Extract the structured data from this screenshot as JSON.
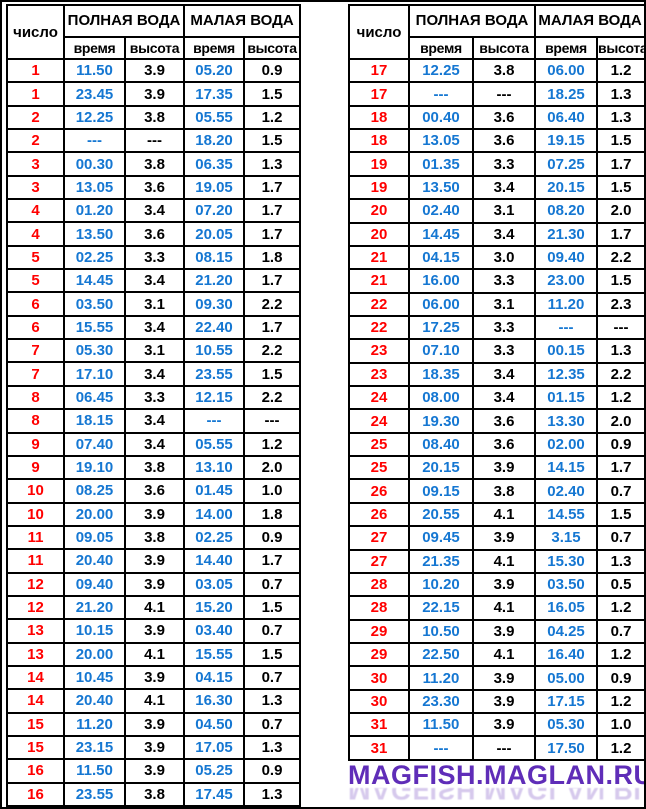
{
  "header": {
    "date_label": "число",
    "high_water_label": "ПОЛНАЯ\nВОДА",
    "low_water_label": "МАЛАЯ\nВОДА",
    "time_label": "время",
    "height_label": "высота"
  },
  "colors": {
    "date": "#ff0000",
    "time": "#1577d2",
    "height": "#000000",
    "border": "#000000",
    "watermark": "#5f2db8"
  },
  "watermark": {
    "text": "MAGFISH.MAGLAN.RU"
  },
  "tables": [
    {
      "rows": [
        [
          "1",
          "11.50",
          "3.9",
          "05.20",
          "0.9"
        ],
        [
          "1",
          "23.45",
          "3.9",
          "17.35",
          "1.5"
        ],
        [
          "2",
          "12.25",
          "3.8",
          "05.55",
          "1.2"
        ],
        [
          "2",
          "---",
          "---",
          "18.20",
          "1.5"
        ],
        [
          "3",
          "00.30",
          "3.8",
          "06.35",
          "1.3"
        ],
        [
          "3",
          "13.05",
          "3.6",
          "19.05",
          "1.7"
        ],
        [
          "4",
          "01.20",
          "3.4",
          "07.20",
          "1.7"
        ],
        [
          "4",
          "13.50",
          "3.6",
          "20.05",
          "1.7"
        ],
        [
          "5",
          "02.25",
          "3.3",
          "08.15",
          "1.8"
        ],
        [
          "5",
          "14.45",
          "3.4",
          "21.20",
          "1.7"
        ],
        [
          "6",
          "03.50",
          "3.1",
          "09.30",
          "2.2"
        ],
        [
          "6",
          "15.55",
          "3.4",
          "22.40",
          "1.7"
        ],
        [
          "7",
          "05.30",
          "3.1",
          "10.55",
          "2.2"
        ],
        [
          "7",
          "17.10",
          "3.4",
          "23.55",
          "1.5"
        ],
        [
          "8",
          "06.45",
          "3.3",
          "12.15",
          "2.2"
        ],
        [
          "8",
          "18.15",
          "3.4",
          "---",
          "---"
        ],
        [
          "9",
          "07.40",
          "3.4",
          "05.55",
          "1.2"
        ],
        [
          "9",
          "19.10",
          "3.8",
          "13.10",
          "2.0"
        ],
        [
          "10",
          "08.25",
          "3.6",
          "01.45",
          "1.0"
        ],
        [
          "10",
          "20.00",
          "3.9",
          "14.00",
          "1.8"
        ],
        [
          "11",
          "09.05",
          "3.8",
          "02.25",
          "0.9"
        ],
        [
          "11",
          "20.40",
          "3.9",
          "14.40",
          "1.7"
        ],
        [
          "12",
          "09.40",
          "3.9",
          "03.05",
          "0.7"
        ],
        [
          "12",
          "21.20",
          "4.1",
          "15.20",
          "1.5"
        ],
        [
          "13",
          "10.15",
          "3.9",
          "03.40",
          "0.7"
        ],
        [
          "13",
          "20.00",
          "4.1",
          "15.55",
          "1.5"
        ],
        [
          "14",
          "10.45",
          "3.9",
          "04.15",
          "0.7"
        ],
        [
          "14",
          "20.40",
          "4.1",
          "16.30",
          "1.3"
        ],
        [
          "15",
          "11.20",
          "3.9",
          "04.50",
          "0.7"
        ],
        [
          "15",
          "23.15",
          "3.9",
          "17.05",
          "1.3"
        ],
        [
          "16",
          "11.50",
          "3.9",
          "05.25",
          "0.9"
        ],
        [
          "16",
          "23.55",
          "3.8",
          "17.45",
          "1.3"
        ]
      ]
    },
    {
      "rows": [
        [
          "17",
          "12.25",
          "3.8",
          "06.00",
          "1.2"
        ],
        [
          "17",
          "---",
          "---",
          "18.25",
          "1.3"
        ],
        [
          "18",
          "00.40",
          "3.6",
          "06.40",
          "1.3"
        ],
        [
          "18",
          "13.05",
          "3.6",
          "19.15",
          "1.5"
        ],
        [
          "19",
          "01.35",
          "3.3",
          "07.25",
          "1.7"
        ],
        [
          "19",
          "13.50",
          "3.4",
          "20.15",
          "1.5"
        ],
        [
          "20",
          "02.40",
          "3.1",
          "08.20",
          "2.0"
        ],
        [
          "20",
          "14.45",
          "3.4",
          "21.30",
          "1.7"
        ],
        [
          "21",
          "04.15",
          "3.0",
          "09.40",
          "2.2"
        ],
        [
          "21",
          "16.00",
          "3.3",
          "23.00",
          "1.5"
        ],
        [
          "22",
          "06.00",
          "3.1",
          "11.20",
          "2.3"
        ],
        [
          "22",
          "17.25",
          "3.3",
          "---",
          "---"
        ],
        [
          "23",
          "07.10",
          "3.3",
          "00.15",
          "1.3"
        ],
        [
          "23",
          "18.35",
          "3.4",
          "12.35",
          "2.2"
        ],
        [
          "24",
          "08.00",
          "3.4",
          "01.15",
          "1.2"
        ],
        [
          "24",
          "19.30",
          "3.6",
          "13.30",
          "2.0"
        ],
        [
          "25",
          "08.40",
          "3.6",
          "02.00",
          "0.9"
        ],
        [
          "25",
          "20.15",
          "3.9",
          "14.15",
          "1.7"
        ],
        [
          "26",
          "09.15",
          "3.8",
          "02.40",
          "0.7"
        ],
        [
          "26",
          "20.55",
          "4.1",
          "14.55",
          "1.5"
        ],
        [
          "27",
          "09.45",
          "3.9",
          "3.15",
          "0.7"
        ],
        [
          "27",
          "21.35",
          "4.1",
          "15.30",
          "1.3"
        ],
        [
          "28",
          "10.20",
          "3.9",
          "03.50",
          "0.5"
        ],
        [
          "28",
          "22.15",
          "4.1",
          "16.05",
          "1.2"
        ],
        [
          "29",
          "10.50",
          "3.9",
          "04.25",
          "0.7"
        ],
        [
          "29",
          "22.50",
          "4.1",
          "16.40",
          "1.2"
        ],
        [
          "30",
          "11.20",
          "3.9",
          "05.00",
          "0.9"
        ],
        [
          "30",
          "23.30",
          "3.9",
          "17.15",
          "1.2"
        ],
        [
          "31",
          "11.50",
          "3.9",
          "05.30",
          "1.0"
        ],
        [
          "31",
          "---",
          "---",
          "17.50",
          "1.2"
        ]
      ]
    }
  ]
}
